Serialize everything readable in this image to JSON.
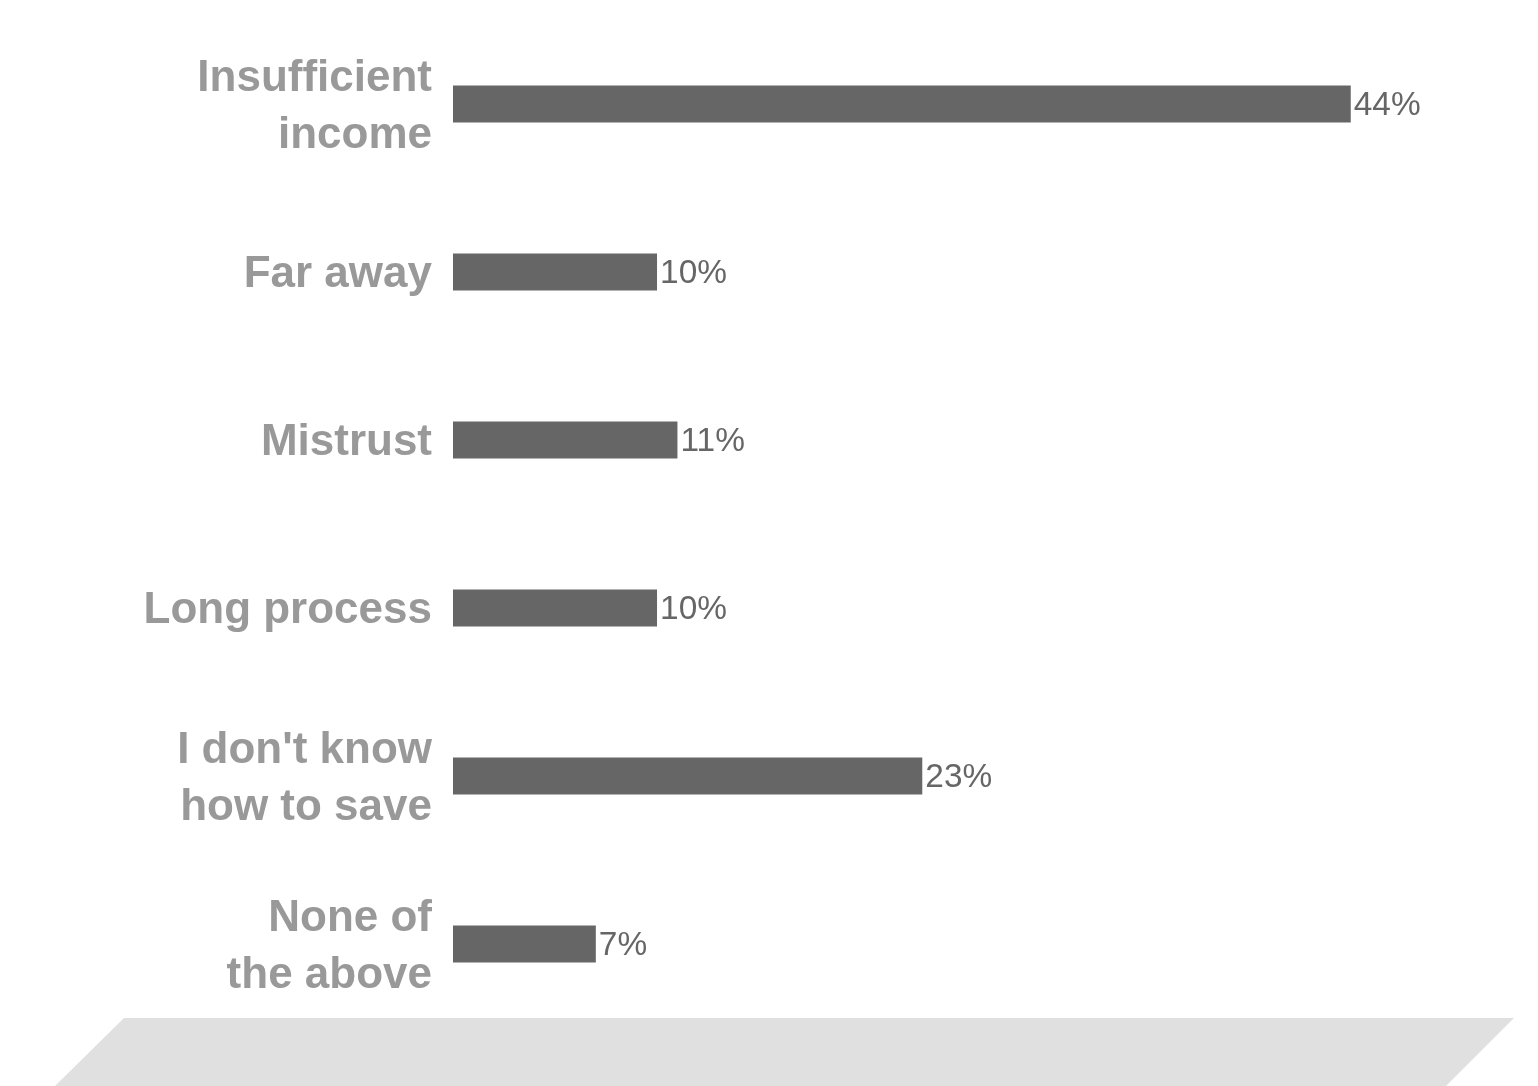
{
  "chart_data": {
    "type": "bar",
    "orientation": "horizontal",
    "categories": [
      "Insufficient income",
      "Far away",
      "Mistrust",
      "Long process",
      "I don't know how to save",
      "None of the above"
    ],
    "values": [
      44,
      10,
      11,
      10,
      23,
      7
    ],
    "color": "#666666",
    "value_labels": [
      "44%",
      "10%",
      "11%",
      "10%",
      "23%",
      "7%"
    ],
    "tick_labels": "y"
  }
}
